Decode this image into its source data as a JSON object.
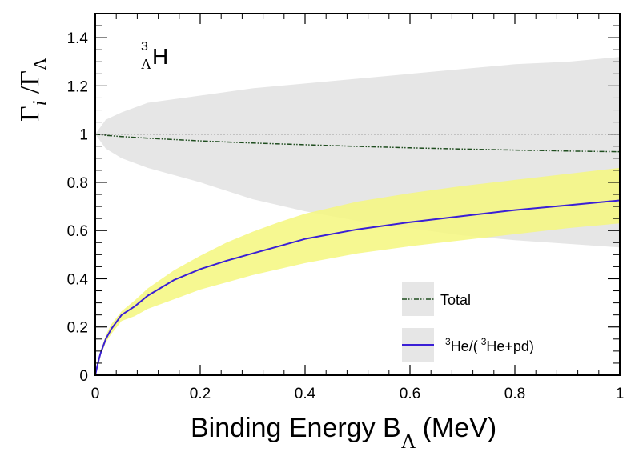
{
  "chart_data": {
    "type": "area",
    "xlabel": "Binding Energy B",
    "xlabel_sub": "Λ",
    "xlabel_unit": "(MeV)",
    "ylabel_num": "Γ",
    "ylabel_num_sub": "i",
    "ylabel_den": "Γ",
    "ylabel_den_sub": "Λ",
    "annotation": {
      "sup": "3",
      "sub": "Λ",
      "text": "H"
    },
    "xlim": [
      0,
      1
    ],
    "ylim": [
      0,
      1.5
    ],
    "xticks": [
      0,
      0.2,
      0.4,
      0.6,
      0.8,
      1
    ],
    "xtick_labels": [
      "0",
      "0.2",
      "0.4",
      "0.6",
      "0.8",
      "1"
    ],
    "yticks": [
      0,
      0.2,
      0.4,
      0.6,
      0.8,
      1,
      1.2,
      1.4
    ],
    "ytick_labels": [
      "0",
      "0.2",
      "0.4",
      "0.6",
      "0.8",
      "1",
      "1.2",
      "1.4"
    ],
    "grid": false,
    "legend_position": "bottom-right",
    "reference_line": {
      "y": 1.0,
      "style": "dotted",
      "color": "#555555"
    },
    "series": [
      {
        "name": "Total",
        "line_style": "dash-dot",
        "line_color": "#1f4d1f",
        "band_color": "#e6e6e6",
        "x": [
          0,
          0.02,
          0.05,
          0.1,
          0.2,
          0.3,
          0.4,
          0.5,
          0.6,
          0.7,
          0.8,
          0.9,
          1.0
        ],
        "values": [
          1.0,
          0.995,
          0.99,
          0.983,
          0.972,
          0.963,
          0.956,
          0.949,
          0.943,
          0.938,
          0.934,
          0.93,
          0.927
        ],
        "band_upper": [
          1.0,
          1.06,
          1.09,
          1.13,
          1.16,
          1.19,
          1.21,
          1.23,
          1.25,
          1.27,
          1.29,
          1.3,
          1.32
        ],
        "band_lower": [
          1.0,
          0.94,
          0.9,
          0.86,
          0.8,
          0.73,
          0.68,
          0.64,
          0.61,
          0.58,
          0.56,
          0.545,
          0.53
        ]
      },
      {
        "name_sup_1": "3",
        "name_main_1": "He/(",
        "name_sup_2": "3",
        "name_main_2": "He+pd)",
        "line_style": "solid",
        "line_color": "#3a1fd6",
        "band_color": "#f4f77e",
        "x": [
          0,
          0.005,
          0.01,
          0.02,
          0.03,
          0.05,
          0.075,
          0.1,
          0.15,
          0.2,
          0.25,
          0.3,
          0.35,
          0.4,
          0.5,
          0.6,
          0.7,
          0.8,
          0.9,
          1.0
        ],
        "values": [
          0.0,
          0.05,
          0.09,
          0.15,
          0.19,
          0.25,
          0.285,
          0.33,
          0.395,
          0.44,
          0.475,
          0.505,
          0.535,
          0.565,
          0.605,
          0.635,
          0.66,
          0.685,
          0.705,
          0.725
        ],
        "band_upper": [
          0.0,
          0.055,
          0.1,
          0.165,
          0.21,
          0.265,
          0.31,
          0.36,
          0.435,
          0.495,
          0.55,
          0.595,
          0.635,
          0.67,
          0.72,
          0.755,
          0.785,
          0.81,
          0.835,
          0.86
        ],
        "band_lower": [
          0.0,
          0.045,
          0.08,
          0.135,
          0.17,
          0.225,
          0.245,
          0.275,
          0.315,
          0.355,
          0.385,
          0.415,
          0.44,
          0.465,
          0.505,
          0.535,
          0.56,
          0.585,
          0.61,
          0.63
        ]
      }
    ]
  }
}
